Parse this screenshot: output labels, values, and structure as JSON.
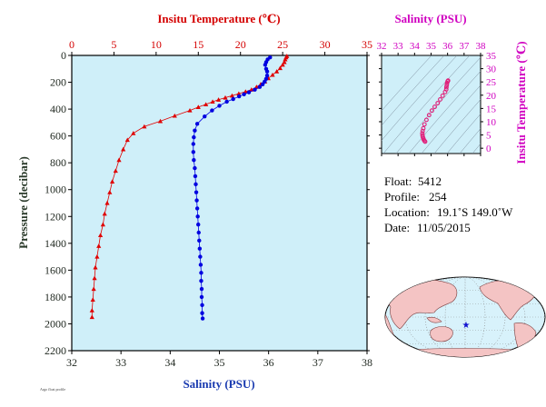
{
  "chart_data": [
    {
      "type": "scatter",
      "name": "profile",
      "top_axis": {
        "label": "Insitu Temperature (℃)",
        "range": [
          0,
          35
        ],
        "ticks": [
          0,
          5,
          10,
          15,
          20,
          25,
          30,
          35
        ],
        "color": "#d40000"
      },
      "bottom_axis": {
        "label": "Salinity (PSU)",
        "range": [
          32,
          38
        ],
        "ticks": [
          32,
          33,
          34,
          35,
          36,
          37,
          38
        ]
      },
      "y_axis": {
        "label": "Pressure (decibar)",
        "range": [
          0,
          2200
        ],
        "inverted": true,
        "ticks": [
          0,
          200,
          400,
          600,
          800,
          1000,
          1200,
          1400,
          1600,
          1800,
          2000,
          2200
        ]
      },
      "series": [
        {
          "axis": "top",
          "marker": "triangle",
          "color": "#e00000",
          "points": [
            [
              25.5,
              5
            ],
            [
              25.4,
              15
            ],
            [
              25.3,
              30
            ],
            [
              25.2,
              50
            ],
            [
              25.0,
              70
            ],
            [
              24.7,
              95
            ],
            [
              24.3,
              120
            ],
            [
              23.8,
              145
            ],
            [
              23.3,
              170
            ],
            [
              22.9,
              195
            ],
            [
              22.4,
              215
            ],
            [
              21.9,
              235
            ],
            [
              21.3,
              255
            ],
            [
              20.6,
              270
            ],
            [
              19.8,
              285
            ],
            [
              19.0,
              300
            ],
            [
              18.2,
              315
            ],
            [
              17.4,
              330
            ],
            [
              16.7,
              345
            ],
            [
              15.9,
              365
            ],
            [
              15.0,
              385
            ],
            [
              14.0,
              410
            ],
            [
              12.2,
              450
            ],
            [
              10.5,
              490
            ],
            [
              8.6,
              530
            ],
            [
              7.3,
              580
            ],
            [
              6.6,
              630
            ],
            [
              6.1,
              700
            ],
            [
              5.6,
              780
            ],
            [
              5.2,
              860
            ],
            [
              4.8,
              940
            ],
            [
              4.5,
              1020
            ],
            [
              4.2,
              1100
            ],
            [
              3.9,
              1180
            ],
            [
              3.7,
              1260
            ],
            [
              3.4,
              1340
            ],
            [
              3.2,
              1420
            ],
            [
              3.0,
              1500
            ],
            [
              2.8,
              1580
            ],
            [
              2.7,
              1660
            ],
            [
              2.6,
              1740
            ],
            [
              2.5,
              1820
            ],
            [
              2.4,
              1900
            ],
            [
              2.4,
              1950
            ]
          ]
        },
        {
          "axis": "bottom",
          "marker": "circle",
          "color": "#0000e0",
          "points": [
            [
              36.03,
              15
            ],
            [
              35.98,
              30
            ],
            [
              35.95,
              50
            ],
            [
              35.93,
              70
            ],
            [
              35.95,
              100
            ],
            [
              35.97,
              120
            ],
            [
              35.97,
              150
            ],
            [
              35.95,
              175
            ],
            [
              35.92,
              195
            ],
            [
              35.88,
              215
            ],
            [
              35.82,
              235
            ],
            [
              35.72,
              255
            ],
            [
              35.6,
              275
            ],
            [
              35.5,
              290
            ],
            [
              35.4,
              305
            ],
            [
              35.28,
              325
            ],
            [
              35.15,
              345
            ],
            [
              35.0,
              375
            ],
            [
              34.85,
              410
            ],
            [
              34.7,
              455
            ],
            [
              34.55,
              510
            ],
            [
              34.5,
              560
            ],
            [
              34.48,
              610
            ],
            [
              34.47,
              660
            ],
            [
              34.47,
              720
            ],
            [
              34.48,
              780
            ],
            [
              34.5,
              840
            ],
            [
              34.51,
              900
            ],
            [
              34.52,
              960
            ],
            [
              34.53,
              1020
            ],
            [
              34.54,
              1080
            ],
            [
              34.55,
              1140
            ],
            [
              34.56,
              1200
            ],
            [
              34.57,
              1260
            ],
            [
              34.58,
              1320
            ],
            [
              34.59,
              1380
            ],
            [
              34.6,
              1440
            ],
            [
              34.61,
              1500
            ],
            [
              34.62,
              1560
            ],
            [
              34.63,
              1620
            ],
            [
              34.63,
              1680
            ],
            [
              34.64,
              1740
            ],
            [
              34.64,
              1800
            ],
            [
              34.65,
              1860
            ],
            [
              34.65,
              1920
            ],
            [
              34.66,
              1960
            ]
          ]
        }
      ]
    },
    {
      "type": "scatter",
      "name": "ts_diagram",
      "x_axis": {
        "label": "Salinity (PSU)",
        "range": [
          32,
          38
        ],
        "ticks": [
          32,
          33,
          34,
          35,
          36,
          37,
          38
        ]
      },
      "y_axis": {
        "label": "Insitu Temperature (℃)",
        "range": [
          -2,
          35
        ],
        "ticks": [
          0,
          5,
          10,
          15,
          20,
          25,
          30,
          35
        ]
      },
      "series": [
        {
          "marker": "circle",
          "color": "#e0207a",
          "points": [
            [
              36.03,
              25.5
            ],
            [
              36.0,
              25.2
            ],
            [
              35.97,
              24.6
            ],
            [
              35.95,
              23.8
            ],
            [
              35.93,
              23.0
            ],
            [
              35.92,
              22.2
            ],
            [
              35.85,
              21.2
            ],
            [
              35.7,
              19.8
            ],
            [
              35.55,
              18.4
            ],
            [
              35.4,
              17.0
            ],
            [
              35.22,
              15.6
            ],
            [
              35.05,
              14.2
            ],
            [
              34.88,
              12.5
            ],
            [
              34.72,
              10.7
            ],
            [
              34.6,
              9.0
            ],
            [
              34.53,
              7.5
            ],
            [
              34.49,
              6.5
            ],
            [
              34.47,
              5.6
            ],
            [
              34.48,
              4.8
            ],
            [
              34.5,
              4.2
            ],
            [
              34.53,
              3.7
            ],
            [
              34.56,
              3.2
            ],
            [
              34.6,
              2.8
            ],
            [
              34.64,
              2.5
            ]
          ]
        }
      ]
    }
  ],
  "info": {
    "float_label": "Float:",
    "float_value": "5412",
    "profile_label": "Profile:",
    "profile_value": "254",
    "location_label": "Location:",
    "location_value": "19.1˚S  149.0˚W",
    "date_label": "Date:",
    "date_value": "11/05/2015"
  },
  "footer_note": "Argo float profile"
}
